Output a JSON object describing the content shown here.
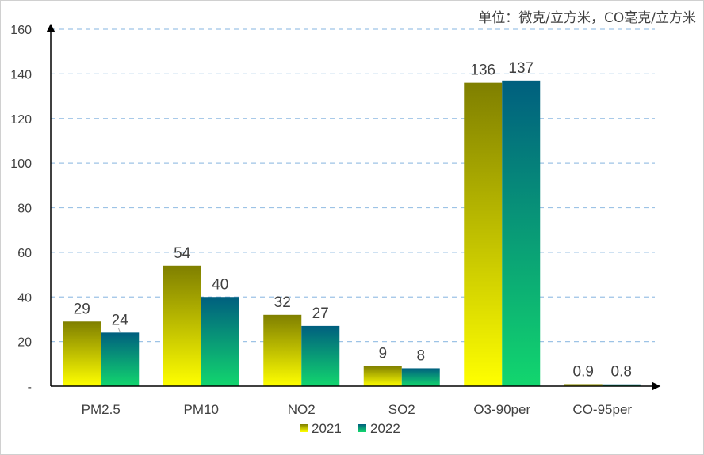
{
  "unit_label": "单位：微克/立方米，CO毫克/立方米",
  "chart_data": {
    "type": "bar",
    "title": "",
    "xlabel": "",
    "ylabel": "",
    "ylim": [
      0,
      160
    ],
    "yticks": [
      0,
      20,
      40,
      60,
      80,
      100,
      120,
      140,
      160
    ],
    "ytick_labels": [
      "-",
      "20",
      "40",
      "60",
      "80",
      "100",
      "120",
      "140",
      "160"
    ],
    "grid": true,
    "legend_position": "bottom",
    "categories": [
      "PM2.5",
      "PM10",
      "NO2",
      "SO2",
      "O3-90per",
      "CO-95per"
    ],
    "series": [
      {
        "name": "2021",
        "values": [
          29,
          54,
          32,
          9,
          136,
          0.9
        ],
        "labels": [
          "29",
          "54",
          "32",
          "9",
          "136",
          "0.9"
        ],
        "color_top": "#7f7f00",
        "color_bottom": "#ffff00"
      },
      {
        "name": "2022",
        "values": [
          24,
          40,
          27,
          8,
          137,
          0.8
        ],
        "labels": [
          "24",
          "40",
          "27",
          "8",
          "137",
          "0.8"
        ],
        "color_top": "#005f7f",
        "color_bottom": "#12d66e"
      }
    ]
  }
}
